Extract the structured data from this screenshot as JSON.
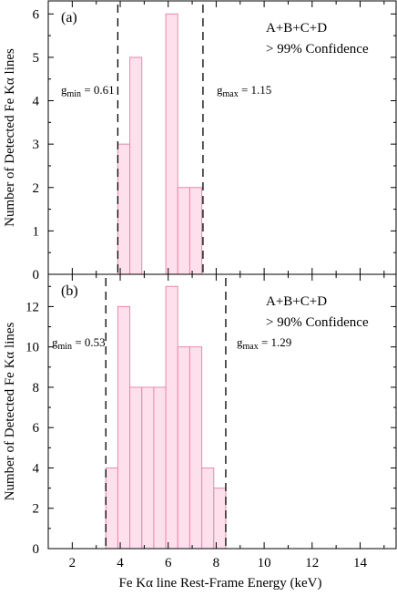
{
  "chart_data": [
    {
      "type": "bar",
      "panel_label": "(a)",
      "annotation_line1": "A+B+C+D",
      "annotation_line2": "> 99% Confidence",
      "g_min_text": "g",
      "g_min_sub": "min",
      "g_min_value": " = 0.61",
      "g_max_text": "g",
      "g_max_sub": "max",
      "g_max_value": " = 1.15",
      "g_min_line_x": 3.9,
      "g_max_line_x": 7.45,
      "bin_width": 0.5,
      "bins": [
        {
          "x_start": 3.9,
          "value": 3
        },
        {
          "x_start": 4.4,
          "value": 5
        },
        {
          "x_start": 5.9,
          "value": 6
        },
        {
          "x_start": 6.4,
          "value": 2
        },
        {
          "x_start": 6.9,
          "value": 2
        }
      ],
      "ylim": [
        0,
        6.3
      ],
      "yticks": [
        0,
        1,
        2,
        3,
        4,
        5,
        6
      ],
      "ytick_labels": [
        "0",
        "1",
        "2",
        "3",
        "4",
        "5",
        "6"
      ],
      "ylabel": "Number of Detected Fe Kα lines"
    },
    {
      "type": "bar",
      "panel_label": "(b)",
      "annotation_line1": "A+B+C+D",
      "annotation_line2": "> 90% Confidence",
      "g_min_text": "g",
      "g_min_sub": "min",
      "g_min_value": " = 0.53",
      "g_max_text": "g",
      "g_max_sub": "max",
      "g_max_value": " = 1.29",
      "g_min_line_x": 3.4,
      "g_max_line_x": 8.4,
      "bin_width": 0.5,
      "bins": [
        {
          "x_start": 3.4,
          "value": 4
        },
        {
          "x_start": 3.9,
          "value": 12
        },
        {
          "x_start": 4.4,
          "value": 8
        },
        {
          "x_start": 4.9,
          "value": 8
        },
        {
          "x_start": 5.4,
          "value": 8
        },
        {
          "x_start": 5.9,
          "value": 13
        },
        {
          "x_start": 6.4,
          "value": 10
        },
        {
          "x_start": 6.9,
          "value": 10
        },
        {
          "x_start": 7.4,
          "value": 4
        },
        {
          "x_start": 7.9,
          "value": 3
        }
      ],
      "ylim": [
        0,
        13.6
      ],
      "yticks": [
        0,
        2,
        4,
        6,
        8,
        10,
        12
      ],
      "ytick_labels": [
        "0",
        "2",
        "4",
        "6",
        "8",
        "10",
        "12"
      ],
      "ylabel": "Number of Detected Fe Kα lines"
    }
  ],
  "x_axis": {
    "xlim": [
      1,
      15.5
    ],
    "xticks": [
      2,
      4,
      6,
      8,
      10,
      12,
      14
    ],
    "xtick_labels": [
      "2",
      "4",
      "6",
      "8",
      "10",
      "12",
      "14"
    ],
    "xlabel": "Fe Kα line Rest-Frame Energy (keV)"
  },
  "colors": {
    "bar_fill": "#fde0ec",
    "bar_stroke": "#e889ad",
    "axis": "#000000",
    "dashed_line": "#000000"
  }
}
